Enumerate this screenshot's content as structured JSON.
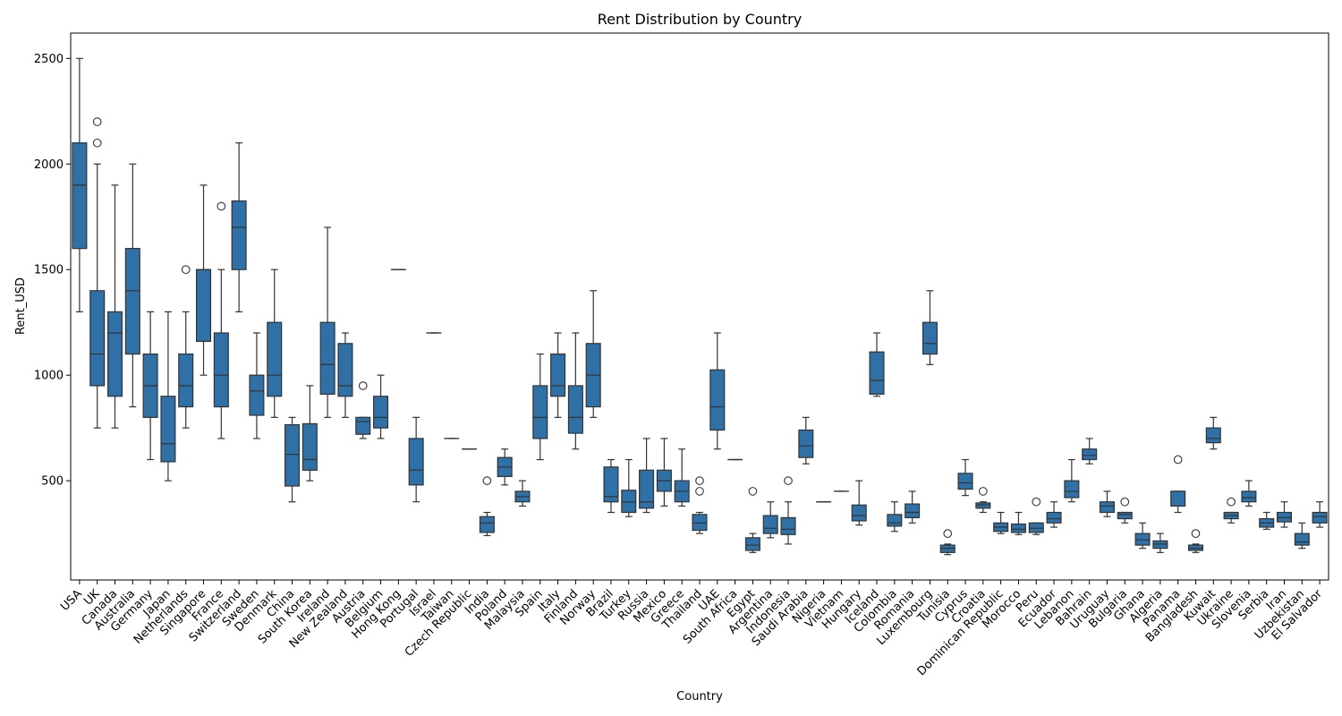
{
  "chart_data": {
    "type": "box",
    "title": "Rent Distribution by Country",
    "xlabel": "Country",
    "ylabel": "Rent_USD",
    "ylim": [
      30,
      2620
    ],
    "yticks": [
      500,
      1000,
      1500,
      2000,
      2500
    ],
    "grid": false,
    "legend": "none",
    "colors": {
      "box": "#2f70a6",
      "edge": "#333333"
    },
    "boxes": [
      {
        "c": "USA",
        "min": 1300,
        "q1": 1600,
        "med": 1900,
        "q3": 2100,
        "max": 2500,
        "out": []
      },
      {
        "c": "UK",
        "min": 750,
        "q1": 950,
        "med": 1100,
        "q3": 1400,
        "max": 2000,
        "out": [
          2100,
          2200
        ]
      },
      {
        "c": "Canada",
        "min": 750,
        "q1": 900,
        "med": 1200,
        "q3": 1300,
        "max": 1900,
        "out": []
      },
      {
        "c": "Australia",
        "min": 850,
        "q1": 1100,
        "med": 1400,
        "q3": 1600,
        "max": 2000,
        "out": []
      },
      {
        "c": "Germany",
        "min": 600,
        "q1": 800,
        "med": 950,
        "q3": 1100,
        "max": 1300,
        "out": []
      },
      {
        "c": "Japan",
        "min": 500,
        "q1": 590,
        "med": 675,
        "q3": 900,
        "max": 1300,
        "out": []
      },
      {
        "c": "Netherlands",
        "min": 750,
        "q1": 850,
        "med": 950,
        "q3": 1100,
        "max": 1300,
        "out": [
          1500
        ]
      },
      {
        "c": "Singapore",
        "min": 1000,
        "q1": 1160,
        "med": 1500,
        "q3": 1500,
        "max": 1900,
        "out": []
      },
      {
        "c": "France",
        "min": 700,
        "q1": 850,
        "med": 1000,
        "q3": 1200,
        "max": 1500,
        "out": [
          1800
        ]
      },
      {
        "c": "Switzerland",
        "min": 1300,
        "q1": 1500,
        "med": 1700,
        "q3": 1825,
        "max": 2100,
        "out": []
      },
      {
        "c": "Sweden",
        "min": 700,
        "q1": 810,
        "med": 925,
        "q3": 1000,
        "max": 1200,
        "out": []
      },
      {
        "c": "Denmark",
        "min": 800,
        "q1": 900,
        "med": 1000,
        "q3": 1250,
        "max": 1500,
        "out": []
      },
      {
        "c": "China",
        "min": 400,
        "q1": 475,
        "med": 625,
        "q3": 765,
        "max": 800,
        "out": []
      },
      {
        "c": "South Korea",
        "min": 500,
        "q1": 550,
        "med": 600,
        "q3": 770,
        "max": 950,
        "out": []
      },
      {
        "c": "Ireland",
        "min": 800,
        "q1": 910,
        "med": 1050,
        "q3": 1250,
        "max": 1700,
        "out": []
      },
      {
        "c": "New Zealand",
        "min": 800,
        "q1": 900,
        "med": 950,
        "q3": 1150,
        "max": 1200,
        "out": []
      },
      {
        "c": "Austria",
        "min": 700,
        "q1": 720,
        "med": 780,
        "q3": 800,
        "max": 800,
        "out": [
          950
        ]
      },
      {
        "c": "Belgium",
        "min": 700,
        "q1": 750,
        "med": 800,
        "q3": 900,
        "max": 1000,
        "out": []
      },
      {
        "c": "Hong Kong",
        "min": 1500,
        "q1": 1500,
        "med": 1500,
        "q3": 1500,
        "max": 1500,
        "out": []
      },
      {
        "c": "Portugal",
        "min": 400,
        "q1": 480,
        "med": 550,
        "q3": 700,
        "max": 800,
        "out": []
      },
      {
        "c": "Israel",
        "min": 1200,
        "q1": 1200,
        "med": 1200,
        "q3": 1200,
        "max": 1200,
        "out": []
      },
      {
        "c": "Taiwan",
        "min": 700,
        "q1": 700,
        "med": 700,
        "q3": 700,
        "max": 700,
        "out": []
      },
      {
        "c": "Czech Republic",
        "min": 650,
        "q1": 650,
        "med": 650,
        "q3": 650,
        "max": 650,
        "out": []
      },
      {
        "c": "India",
        "min": 240,
        "q1": 255,
        "med": 300,
        "q3": 330,
        "max": 350,
        "out": [
          500
        ]
      },
      {
        "c": "Poland",
        "min": 480,
        "q1": 520,
        "med": 565,
        "q3": 610,
        "max": 650,
        "out": []
      },
      {
        "c": "Malaysia",
        "min": 380,
        "q1": 400,
        "med": 425,
        "q3": 450,
        "max": 500,
        "out": []
      },
      {
        "c": "Spain",
        "min": 600,
        "q1": 700,
        "med": 800,
        "q3": 950,
        "max": 1100,
        "out": []
      },
      {
        "c": "Italy",
        "min": 800,
        "q1": 900,
        "med": 950,
        "q3": 1100,
        "max": 1200,
        "out": []
      },
      {
        "c": "Finland",
        "min": 650,
        "q1": 725,
        "med": 800,
        "q3": 950,
        "max": 1200,
        "out": []
      },
      {
        "c": "Norway",
        "min": 800,
        "q1": 850,
        "med": 1000,
        "q3": 1150,
        "max": 1400,
        "out": []
      },
      {
        "c": "Brazil",
        "min": 350,
        "q1": 400,
        "med": 425,
        "q3": 565,
        "max": 600,
        "out": []
      },
      {
        "c": "Turkey",
        "min": 330,
        "q1": 350,
        "med": 400,
        "q3": 455,
        "max": 600,
        "out": []
      },
      {
        "c": "Russia",
        "min": 350,
        "q1": 370,
        "med": 400,
        "q3": 550,
        "max": 700,
        "out": []
      },
      {
        "c": "Mexico",
        "min": 380,
        "q1": 450,
        "med": 500,
        "q3": 550,
        "max": 700,
        "out": []
      },
      {
        "c": "Greece",
        "min": 380,
        "q1": 400,
        "med": 450,
        "q3": 500,
        "max": 650,
        "out": []
      },
      {
        "c": "Thailand",
        "min": 250,
        "q1": 265,
        "med": 300,
        "q3": 340,
        "max": 350,
        "out": [
          450,
          500
        ]
      },
      {
        "c": "UAE",
        "min": 650,
        "q1": 740,
        "med": 850,
        "q3": 1025,
        "max": 1200,
        "out": []
      },
      {
        "c": "South Africa",
        "min": 600,
        "q1": 600,
        "med": 600,
        "q3": 600,
        "max": 600,
        "out": []
      },
      {
        "c": "Egypt",
        "min": 160,
        "q1": 170,
        "med": 195,
        "q3": 230,
        "max": 250,
        "out": [
          450
        ]
      },
      {
        "c": "Argentina",
        "min": 230,
        "q1": 250,
        "med": 275,
        "q3": 335,
        "max": 400,
        "out": []
      },
      {
        "c": "Indonesia",
        "min": 200,
        "q1": 245,
        "med": 270,
        "q3": 325,
        "max": 400,
        "out": [
          500
        ]
      },
      {
        "c": "Saudi Arabia",
        "min": 580,
        "q1": 610,
        "med": 665,
        "q3": 740,
        "max": 800,
        "out": []
      },
      {
        "c": "Nigeria",
        "min": 400,
        "q1": 400,
        "med": 400,
        "q3": 400,
        "max": 400,
        "out": []
      },
      {
        "c": "Vietnam",
        "min": 450,
        "q1": 450,
        "med": 450,
        "q3": 450,
        "max": 450,
        "out": []
      },
      {
        "c": "Hungary",
        "min": 290,
        "q1": 310,
        "med": 335,
        "q3": 385,
        "max": 500,
        "out": []
      },
      {
        "c": "Iceland",
        "min": 900,
        "q1": 910,
        "med": 975,
        "q3": 1110,
        "max": 1200,
        "out": []
      },
      {
        "c": "Colombia",
        "min": 260,
        "q1": 285,
        "med": 300,
        "q3": 340,
        "max": 400,
        "out": []
      },
      {
        "c": "Romania",
        "min": 300,
        "q1": 325,
        "med": 350,
        "q3": 390,
        "max": 450,
        "out": []
      },
      {
        "c": "Luxembourg",
        "min": 1050,
        "q1": 1100,
        "med": 1150,
        "q3": 1250,
        "max": 1400,
        "out": []
      },
      {
        "c": "Tunisia",
        "min": 150,
        "q1": 160,
        "med": 180,
        "q3": 195,
        "max": 200,
        "out": [
          250
        ]
      },
      {
        "c": "Cyprus",
        "min": 430,
        "q1": 460,
        "med": 490,
        "q3": 535,
        "max": 600,
        "out": []
      },
      {
        "c": "Croatia",
        "min": 350,
        "q1": 370,
        "med": 385,
        "q3": 395,
        "max": 400,
        "out": [
          450
        ]
      },
      {
        "c": "Dominican Republic",
        "min": 250,
        "q1": 260,
        "med": 280,
        "q3": 300,
        "max": 350,
        "out": []
      },
      {
        "c": "Morocco",
        "min": 245,
        "q1": 255,
        "med": 270,
        "q3": 295,
        "max": 350,
        "out": []
      },
      {
        "c": "Peru",
        "min": 245,
        "q1": 255,
        "med": 275,
        "q3": 300,
        "max": 300,
        "out": [
          400
        ]
      },
      {
        "c": "Ecuador",
        "min": 280,
        "q1": 300,
        "med": 320,
        "q3": 350,
        "max": 400,
        "out": []
      },
      {
        "c": "Lebanon",
        "min": 400,
        "q1": 420,
        "med": 450,
        "q3": 500,
        "max": 600,
        "out": []
      },
      {
        "c": "Bahrain",
        "min": 580,
        "q1": 600,
        "med": 620,
        "q3": 650,
        "max": 700,
        "out": []
      },
      {
        "c": "Uruguay",
        "min": 330,
        "q1": 350,
        "med": 380,
        "q3": 400,
        "max": 450,
        "out": []
      },
      {
        "c": "Bulgaria",
        "min": 300,
        "q1": 320,
        "med": 340,
        "q3": 350,
        "max": 350,
        "out": [
          400
        ]
      },
      {
        "c": "Ghana",
        "min": 180,
        "q1": 195,
        "med": 220,
        "q3": 250,
        "max": 300,
        "out": []
      },
      {
        "c": "Algeria",
        "min": 160,
        "q1": 180,
        "med": 200,
        "q3": 215,
        "max": 250,
        "out": []
      },
      {
        "c": "Panama",
        "min": 350,
        "q1": 380,
        "med": 450,
        "q3": 450,
        "max": 450,
        "out": [
          600
        ]
      },
      {
        "c": "Bangladesh",
        "min": 160,
        "q1": 170,
        "med": 180,
        "q3": 195,
        "max": 200,
        "out": [
          250
        ]
      },
      {
        "c": "Kuwait",
        "min": 650,
        "q1": 680,
        "med": 700,
        "q3": 750,
        "max": 800,
        "out": []
      },
      {
        "c": "Ukraine",
        "min": 300,
        "q1": 320,
        "med": 335,
        "q3": 350,
        "max": 350,
        "out": [
          400
        ]
      },
      {
        "c": "Slovenia",
        "min": 380,
        "q1": 400,
        "med": 420,
        "q3": 450,
        "max": 500,
        "out": []
      },
      {
        "c": "Serbia",
        "min": 270,
        "q1": 280,
        "med": 300,
        "q3": 320,
        "max": 350,
        "out": []
      },
      {
        "c": "Iran",
        "min": 280,
        "q1": 305,
        "med": 325,
        "q3": 350,
        "max": 400,
        "out": []
      },
      {
        "c": "Uzbekistan",
        "min": 180,
        "q1": 195,
        "med": 210,
        "q3": 250,
        "max": 300,
        "out": []
      },
      {
        "c": "El Salvador",
        "min": 280,
        "q1": 300,
        "med": 330,
        "q3": 350,
        "max": 400,
        "out": []
      }
    ]
  }
}
